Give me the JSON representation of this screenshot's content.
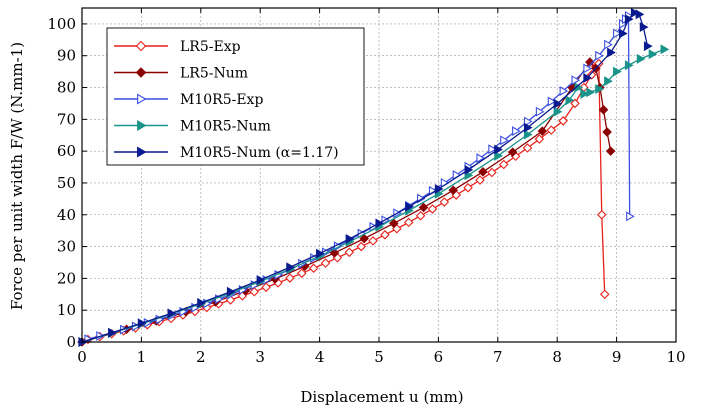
{
  "chart_data": {
    "type": "line",
    "xlabel": "Displacement u (mm)",
    "ylabel": "Force per unit width F/W (N.mm-1)",
    "xlim": [
      0,
      10
    ],
    "ylim": [
      0,
      105
    ],
    "xticks": [
      0,
      1,
      2,
      3,
      4,
      5,
      6,
      7,
      8,
      9,
      10
    ],
    "yticks": [
      0,
      10,
      20,
      30,
      40,
      50,
      60,
      70,
      80,
      90,
      100
    ],
    "grid": true,
    "legend_position": "top-left",
    "series": [
      {
        "name": "LR5-Exp",
        "color": "#e8211b",
        "marker": "diamond-open",
        "x": [
          0.1,
          0.3,
          0.5,
          0.7,
          0.9,
          1.1,
          1.3,
          1.5,
          1.7,
          1.9,
          2.1,
          2.3,
          2.5,
          2.7,
          2.9,
          3.1,
          3.3,
          3.5,
          3.7,
          3.9,
          4.1,
          4.3,
          4.5,
          4.7,
          4.9,
          5.1,
          5.3,
          5.5,
          5.7,
          5.9,
          6.1,
          6.3,
          6.5,
          6.7,
          6.9,
          7.1,
          7.3,
          7.5,
          7.7,
          7.9,
          8.1,
          8.3,
          8.45,
          8.58,
          8.65,
          8.7,
          8.75,
          8.8
        ],
        "y": [
          0.8,
          1.7,
          2.6,
          3.5,
          4.4,
          5.4,
          6.4,
          7.4,
          8.5,
          9.6,
          10.8,
          12.0,
          13.2,
          14.5,
          15.8,
          17.2,
          18.6,
          20.1,
          21.6,
          23.2,
          24.8,
          26.5,
          28.2,
          30.0,
          31.8,
          33.7,
          35.6,
          37.6,
          39.7,
          41.8,
          44.0,
          46.2,
          48.5,
          50.9,
          53.3,
          55.8,
          58.4,
          61.0,
          63.8,
          66.6,
          69.5,
          75.0,
          80.0,
          84.0,
          86.5,
          87.5,
          40.0,
          15.0
        ]
      },
      {
        "name": "LR5-Num",
        "color": "#8b0000",
        "marker": "diamond-filled",
        "x": [
          0.0,
          0.75,
          1.25,
          1.75,
          2.25,
          2.75,
          3.25,
          3.75,
          4.25,
          4.75,
          5.25,
          5.75,
          6.25,
          6.75,
          7.25,
          7.75,
          8.25,
          8.55,
          8.65,
          8.72,
          8.78,
          8.84,
          8.9
        ],
        "y": [
          0.0,
          4.0,
          6.6,
          9.5,
          12.6,
          16.1,
          19.8,
          23.8,
          28.0,
          32.5,
          37.3,
          42.3,
          47.7,
          53.5,
          59.7,
          66.3,
          80.0,
          88.0,
          86.0,
          80.0,
          73.0,
          66.0,
          60.0
        ]
      },
      {
        "name": "M10R5-Exp",
        "color": "#3b4fe0",
        "marker": "triangle-right-open",
        "x": [
          0.1,
          0.3,
          0.5,
          0.7,
          0.9,
          1.1,
          1.3,
          1.5,
          1.7,
          1.9,
          2.1,
          2.3,
          2.5,
          2.7,
          2.9,
          3.1,
          3.3,
          3.5,
          3.7,
          3.9,
          4.1,
          4.3,
          4.5,
          4.7,
          4.9,
          5.1,
          5.3,
          5.5,
          5.7,
          5.9,
          6.1,
          6.3,
          6.5,
          6.7,
          6.9,
          7.1,
          7.3,
          7.5,
          7.7,
          7.9,
          8.1,
          8.3,
          8.5,
          8.7,
          8.85,
          9.0,
          9.1,
          9.15,
          9.2,
          9.22
        ],
        "y": [
          0.9,
          1.9,
          2.9,
          3.9,
          4.9,
          6.0,
          7.1,
          8.3,
          9.5,
          10.8,
          12.1,
          13.5,
          14.9,
          16.4,
          17.9,
          19.5,
          21.1,
          22.8,
          24.6,
          26.4,
          28.2,
          30.1,
          32.1,
          34.1,
          36.2,
          38.3,
          40.5,
          42.8,
          45.1,
          47.5,
          50.0,
          52.5,
          55.1,
          57.8,
          60.6,
          63.4,
          66.3,
          69.3,
          72.4,
          75.6,
          78.9,
          82.3,
          86.0,
          90.0,
          93.5,
          97.0,
          100.0,
          101.5,
          102.5,
          39.5
        ]
      },
      {
        "name": "M10R5-Num",
        "color": "#1a948a",
        "marker": "triangle-right-filled",
        "x": [
          0.0,
          0.5,
          1.0,
          1.5,
          2.0,
          2.5,
          3.0,
          3.5,
          4.0,
          4.5,
          5.0,
          5.5,
          6.0,
          6.5,
          7.0,
          7.5,
          8.0,
          8.2,
          8.35,
          8.45,
          8.55,
          8.7,
          8.85,
          9.0,
          9.2,
          9.4,
          9.6,
          9.8
        ],
        "y": [
          0.0,
          2.8,
          5.7,
          8.8,
          12.0,
          15.4,
          19.0,
          22.9,
          27.0,
          31.5,
          36.2,
          41.3,
          46.6,
          52.4,
          58.5,
          65.2,
          72.4,
          76.0,
          80.0,
          78.0,
          78.5,
          79.5,
          82.0,
          85.0,
          87.0,
          89.0,
          90.5,
          92.0
        ]
      },
      {
        "name": "M10R5-Num (α=1.17)",
        "color": "#0a1a8f",
        "marker": "triangle-right-filled",
        "x": [
          0.0,
          0.5,
          1.0,
          1.5,
          2.0,
          2.5,
          3.0,
          3.5,
          4.0,
          4.5,
          5.0,
          5.5,
          6.0,
          6.5,
          7.0,
          7.5,
          8.0,
          8.5,
          8.9,
          9.1,
          9.2,
          9.3,
          9.38,
          9.45,
          9.52
        ],
        "y": [
          0.0,
          2.9,
          5.9,
          9.0,
          12.3,
          15.8,
          19.5,
          23.5,
          27.8,
          32.4,
          37.3,
          42.5,
          48.1,
          54.1,
          60.5,
          67.4,
          74.9,
          83.0,
          91.0,
          97.0,
          101.5,
          103.5,
          103.0,
          99.0,
          93.0
        ]
      }
    ]
  }
}
